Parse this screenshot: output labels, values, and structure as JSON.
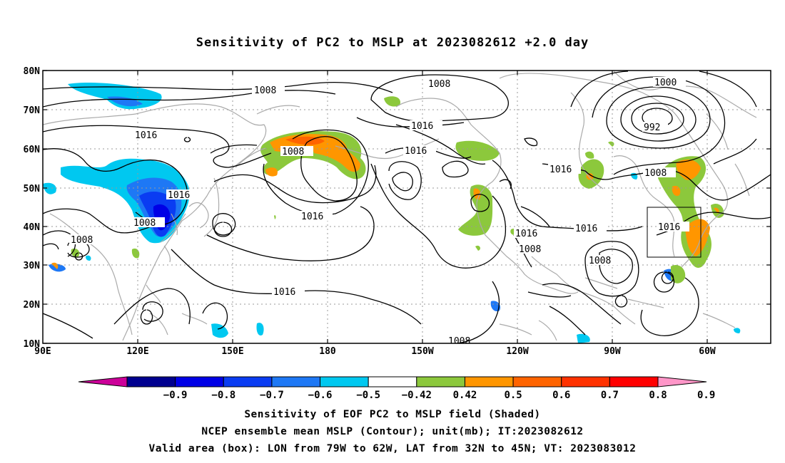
{
  "title": "Sensitivity of PC2 to MSLP at 2023082612 +2.0 day",
  "lat_labels": [
    "80N",
    "70N",
    "60N",
    "50N",
    "40N",
    "30N",
    "20N",
    "10N"
  ],
  "lon_labels": [
    "90E",
    "120E",
    "150E",
    "180",
    "150W",
    "120W",
    "90W",
    "60W"
  ],
  "contour_labels": [
    "1008",
    "1016",
    "1016",
    "1008",
    "1008",
    "1016",
    "1016",
    "1008",
    "1016",
    "1016",
    "1016",
    "1016",
    "1000",
    "992",
    "1008",
    "1016",
    "1008",
    "1008",
    "1016",
    "1008"
  ],
  "colorbar": {
    "ticks": [
      "-0.9",
      "-0.8",
      "-0.7",
      "-0.6",
      "-0.5",
      "-0.42",
      "0.42",
      "0.5",
      "0.6",
      "0.7",
      "0.8",
      "0.9"
    ],
    "colors": [
      "#cc0099",
      "#00008f",
      "#0000e6",
      "#0a3cf2",
      "#1e78f5",
      "#00c8f0",
      "#ffffff",
      "#8cc83c",
      "#ff9600",
      "#ff6400",
      "#ff3200",
      "#ff0000",
      "#ff96c8"
    ]
  },
  "captions": [
    "Sensitivity of EOF PC2 to MSLP field (Shaded)",
    "NCEP ensemble mean MSLP (Contour); unit(mb); IT:2023082612",
    "Valid area (box): LON from 79W to 62W, LAT from 32N to 45N; VT: 2023083012"
  ],
  "valid_box": {
    "lon": [
      -79,
      -62
    ],
    "lat": [
      32,
      45
    ]
  },
  "map_extent": {
    "lon": [
      90,
      320
    ],
    "lat": [
      10,
      80
    ]
  }
}
